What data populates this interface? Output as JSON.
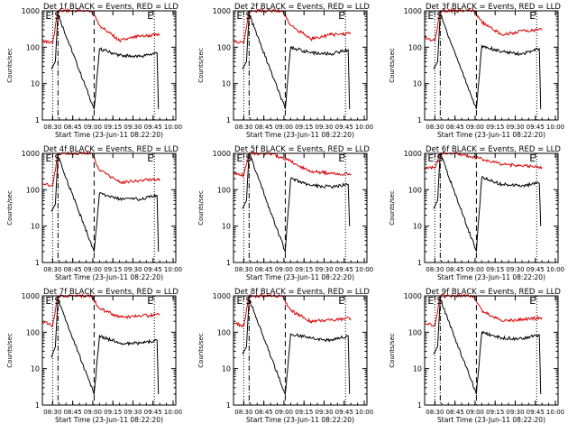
{
  "figure": {
    "xlabel": "Start Time (23-Jun-11 08:22:20)",
    "ylabel": "Counts/sec",
    "x_ticks": [
      "08:30",
      "08:45",
      "09:00",
      "09:15",
      "09:30",
      "09:45",
      "10:00"
    ],
    "y_ticks": [
      "1",
      "10",
      "100",
      "1000"
    ],
    "marker_labels": [
      "E",
      "S",
      "E"
    ]
  },
  "colors": {
    "events": "#000000",
    "lld": "#dd0000",
    "axes": "#000000"
  },
  "chart_data": [
    {
      "type": "line",
      "title": "Det 1f BLACK = Events, RED = LLD",
      "xlim": [
        "08:22:20",
        "10:02:00"
      ],
      "ylim": [
        1,
        1000
      ],
      "yscale": "log",
      "series": [
        {
          "name": "BLACK = Events",
          "x": [
            "08:29",
            "08:32",
            "08:34",
            "09:01",
            "09:05",
            "09:20",
            "09:35",
            "09:48",
            "09:49"
          ],
          "values": [
            25,
            40,
            800,
            2,
            90,
            60,
            55,
            70,
            2
          ]
        },
        {
          "name": "RED = LLD",
          "x": [
            "08:22:20",
            "08:30",
            "08:34",
            "08:59",
            "09:05",
            "09:20",
            "09:35",
            "09:50"
          ],
          "values": [
            150,
            130,
            1000,
            1000,
            400,
            150,
            200,
            220
          ]
        }
      ],
      "vlines": [
        {
          "x": "08:30",
          "style": "dotted",
          "label": "E"
        },
        {
          "x": "08:34",
          "style": "dash-dot",
          "label": "S"
        },
        {
          "x": "09:01",
          "style": "dashed"
        },
        {
          "x": "09:46",
          "style": "dotted",
          "label": "E"
        }
      ]
    },
    {
      "type": "line",
      "title": "Det 2f BLACK = Events, RED = LLD",
      "xlim": [
        "08:22:20",
        "10:02:00"
      ],
      "ylim": [
        1,
        1000
      ],
      "yscale": "log",
      "series": [
        {
          "name": "BLACK = Events",
          "x": [
            "08:29",
            "08:32",
            "08:34",
            "09:01",
            "09:05",
            "09:20",
            "09:35",
            "09:48",
            "09:49"
          ],
          "values": [
            25,
            40,
            800,
            2,
            100,
            70,
            65,
            85,
            2
          ]
        },
        {
          "name": "RED = LLD",
          "x": [
            "08:22:20",
            "08:30",
            "08:34",
            "08:59",
            "09:05",
            "09:20",
            "09:35",
            "09:50"
          ],
          "values": [
            150,
            130,
            1000,
            1000,
            400,
            170,
            220,
            240
          ]
        }
      ],
      "vlines": [
        {
          "x": "08:30",
          "style": "dotted",
          "label": "E"
        },
        {
          "x": "08:34",
          "style": "dash-dot",
          "label": "S"
        },
        {
          "x": "09:01",
          "style": "dashed"
        },
        {
          "x": "09:46",
          "style": "dotted",
          "label": "E"
        }
      ]
    },
    {
      "type": "line",
      "title": "Det 3f BLACK = Events, RED = LLD",
      "xlim": [
        "08:22:20",
        "10:02:00"
      ],
      "ylim": [
        1,
        1000
      ],
      "yscale": "log",
      "series": [
        {
          "name": "BLACK = Events",
          "x": [
            "08:29",
            "08:32",
            "08:34",
            "09:01",
            "09:05",
            "09:20",
            "09:35",
            "09:48",
            "09:49"
          ],
          "values": [
            25,
            40,
            800,
            2,
            110,
            75,
            65,
            90,
            2
          ]
        },
        {
          "name": "RED = LLD",
          "x": [
            "08:22:20",
            "08:30",
            "08:34",
            "08:59",
            "09:05",
            "09:20",
            "09:35",
            "09:50"
          ],
          "values": [
            180,
            150,
            1000,
            1000,
            500,
            220,
            280,
            300
          ]
        }
      ],
      "vlines": [
        {
          "x": "08:30",
          "style": "dotted",
          "label": "E"
        },
        {
          "x": "08:34",
          "style": "dash-dot",
          "label": "S"
        },
        {
          "x": "09:01",
          "style": "dashed"
        },
        {
          "x": "09:46",
          "style": "dotted",
          "label": "E"
        }
      ]
    },
    {
      "type": "line",
      "title": "Det 4f BLACK = Events, RED = LLD",
      "xlim": [
        "08:22:20",
        "10:02:00"
      ],
      "ylim": [
        1,
        1000
      ],
      "yscale": "log",
      "series": [
        {
          "name": "BLACK = Events",
          "x": [
            "08:29",
            "08:32",
            "08:34",
            "09:01",
            "09:05",
            "09:20",
            "09:35",
            "09:48",
            "09:49"
          ],
          "values": [
            25,
            40,
            800,
            2,
            80,
            55,
            55,
            70,
            2
          ]
        },
        {
          "name": "RED = LLD",
          "x": [
            "08:22:20",
            "08:30",
            "08:34",
            "08:59",
            "09:05",
            "09:20",
            "09:35",
            "09:50"
          ],
          "values": [
            150,
            130,
            1000,
            1000,
            350,
            160,
            180,
            200
          ]
        }
      ],
      "vlines": [
        {
          "x": "08:30",
          "style": "dotted",
          "label": "E"
        },
        {
          "x": "08:34",
          "style": "dash-dot",
          "label": "S"
        },
        {
          "x": "09:01",
          "style": "dashed"
        },
        {
          "x": "09:46",
          "style": "dotted",
          "label": "E"
        }
      ]
    },
    {
      "type": "line",
      "title": "Det 5f BLACK = Events, RED = LLD",
      "xlim": [
        "08:22:20",
        "10:02:00"
      ],
      "ylim": [
        1,
        1000
      ],
      "yscale": "log",
      "series": [
        {
          "name": "BLACK = Events",
          "x": [
            "08:29",
            "08:32",
            "08:34",
            "09:01",
            "09:05",
            "09:20",
            "09:35",
            "09:48",
            "09:49"
          ],
          "values": [
            30,
            50,
            1000,
            2,
            200,
            130,
            120,
            140,
            10
          ]
        },
        {
          "name": "RED = LLD",
          "x": [
            "08:22:20",
            "08:30",
            "08:34",
            "08:50",
            "09:05",
            "09:20",
            "09:35",
            "09:50"
          ],
          "values": [
            300,
            250,
            1000,
            1000,
            600,
            320,
            280,
            270
          ]
        }
      ],
      "vlines": [
        {
          "x": "08:30",
          "style": "dotted",
          "label": "E"
        },
        {
          "x": "08:34",
          "style": "dash-dot",
          "label": "S"
        },
        {
          "x": "09:01",
          "style": "dashed"
        },
        {
          "x": "09:46",
          "style": "dotted",
          "label": "E"
        }
      ]
    },
    {
      "type": "line",
      "title": "Det 6f BLACK = Events, RED = LLD",
      "xlim": [
        "08:22:20",
        "10:02:00"
      ],
      "ylim": [
        1,
        1000
      ],
      "yscale": "log",
      "series": [
        {
          "name": "BLACK = Events",
          "x": [
            "08:29",
            "08:32",
            "08:34",
            "09:01",
            "09:05",
            "09:20",
            "09:35",
            "09:48",
            "09:49"
          ],
          "values": [
            30,
            50,
            1000,
            2,
            220,
            140,
            130,
            150,
            10
          ]
        },
        {
          "name": "RED = LLD",
          "x": [
            "08:22:20",
            "08:30",
            "08:34",
            "08:45",
            "09:05",
            "09:20",
            "09:35",
            "09:50"
          ],
          "values": [
            400,
            400,
            1000,
            1000,
            700,
            500,
            450,
            420
          ]
        }
      ],
      "vlines": [
        {
          "x": "08:30",
          "style": "dotted",
          "label": "E"
        },
        {
          "x": "08:34",
          "style": "dash-dot",
          "label": "S"
        },
        {
          "x": "09:01",
          "style": "dashed"
        },
        {
          "x": "09:46",
          "style": "dotted",
          "label": "E"
        }
      ]
    },
    {
      "type": "line",
      "title": "Det 7f BLACK = Events, RED = LLD",
      "xlim": [
        "08:22:20",
        "10:02:00"
      ],
      "ylim": [
        1,
        1000
      ],
      "yscale": "log",
      "series": [
        {
          "name": "BLACK = Events",
          "x": [
            "08:29",
            "08:32",
            "08:34",
            "09:01",
            "09:05",
            "09:20",
            "09:35",
            "09:48",
            "09:49"
          ],
          "values": [
            20,
            40,
            800,
            2,
            80,
            50,
            50,
            60,
            2
          ]
        },
        {
          "name": "RED = LLD",
          "x": [
            "08:22:20",
            "08:30",
            "08:34",
            "08:59",
            "09:05",
            "09:20",
            "09:35",
            "09:50"
          ],
          "values": [
            200,
            150,
            1000,
            1000,
            450,
            260,
            280,
            300
          ]
        }
      ],
      "vlines": [
        {
          "x": "08:30",
          "style": "dotted",
          "label": "E"
        },
        {
          "x": "08:34",
          "style": "dash-dot",
          "label": "S"
        },
        {
          "x": "09:01",
          "style": "dashed"
        },
        {
          "x": "09:46",
          "style": "dotted",
          "label": "E"
        }
      ]
    },
    {
      "type": "line",
      "title": "Det 8f BLACK = Events, RED = LLD",
      "xlim": [
        "08:22:20",
        "10:02:00"
      ],
      "ylim": [
        1,
        1000
      ],
      "yscale": "log",
      "series": [
        {
          "name": "BLACK = Events",
          "x": [
            "08:29",
            "08:32",
            "08:34",
            "09:01",
            "09:05",
            "09:20",
            "09:35",
            "09:48",
            "09:49"
          ],
          "values": [
            25,
            40,
            800,
            2,
            90,
            70,
            60,
            80,
            2
          ]
        },
        {
          "name": "RED = LLD",
          "x": [
            "08:22:20",
            "08:30",
            "08:34",
            "08:59",
            "09:05",
            "09:20",
            "09:35",
            "09:50"
          ],
          "values": [
            180,
            150,
            1000,
            1000,
            400,
            200,
            220,
            240
          ]
        }
      ],
      "vlines": [
        {
          "x": "08:30",
          "style": "dotted",
          "label": "E"
        },
        {
          "x": "08:34",
          "style": "dash-dot",
          "label": "S"
        },
        {
          "x": "09:01",
          "style": "dashed"
        },
        {
          "x": "09:46",
          "style": "dotted",
          "label": "E"
        }
      ]
    },
    {
      "type": "line",
      "title": "Det 9f BLACK = Events, RED = LLD",
      "xlim": [
        "08:22:20",
        "10:02:00"
      ],
      "ylim": [
        1,
        1000
      ],
      "yscale": "log",
      "series": [
        {
          "name": "BLACK = Events",
          "x": [
            "08:29",
            "08:32",
            "08:34",
            "09:01",
            "09:05",
            "09:20",
            "09:35",
            "09:48",
            "09:49"
          ],
          "values": [
            25,
            40,
            800,
            2,
            100,
            70,
            65,
            85,
            2
          ]
        },
        {
          "name": "RED = LLD",
          "x": [
            "08:22:20",
            "08:30",
            "08:34",
            "08:59",
            "09:05",
            "09:20",
            "09:35",
            "09:50"
          ],
          "values": [
            180,
            150,
            1000,
            1000,
            400,
            200,
            230,
            250
          ]
        }
      ],
      "vlines": [
        {
          "x": "08:30",
          "style": "dotted",
          "label": "E"
        },
        {
          "x": "08:34",
          "style": "dash-dot",
          "label": "S"
        },
        {
          "x": "09:01",
          "style": "dashed"
        },
        {
          "x": "09:46",
          "style": "dotted",
          "label": "E"
        }
      ]
    }
  ]
}
